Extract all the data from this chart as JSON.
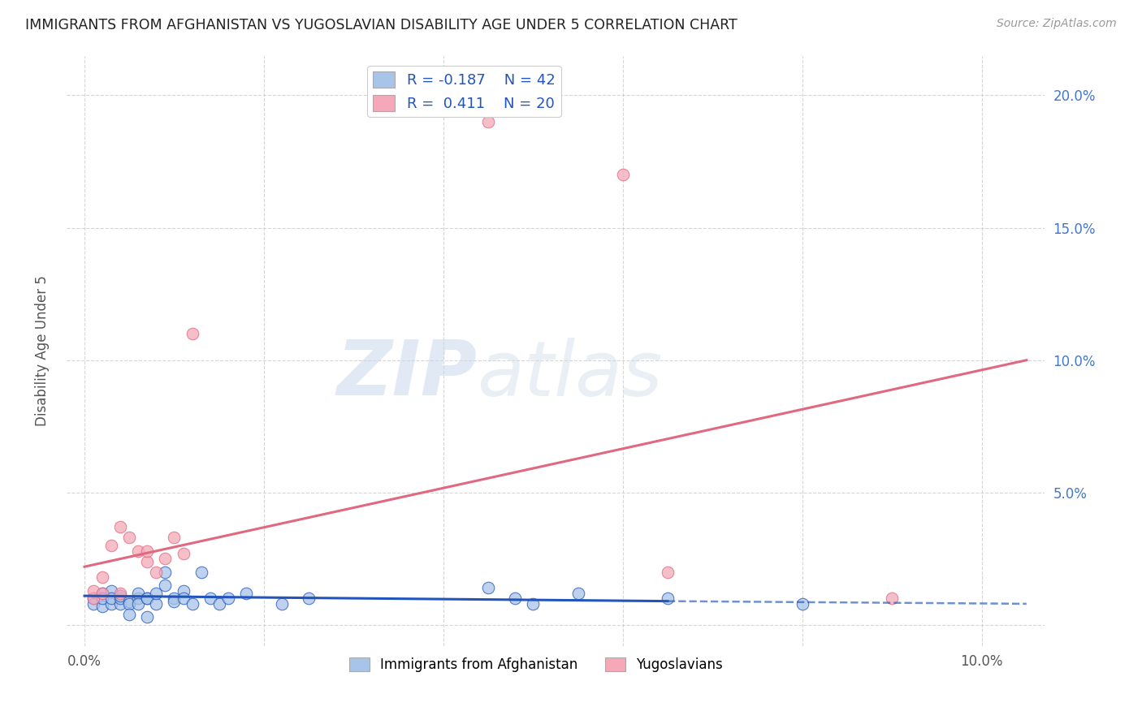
{
  "title": "IMMIGRANTS FROM AFGHANISTAN VS YUGOSLAVIAN DISABILITY AGE UNDER 5 CORRELATION CHART",
  "source": "Source: ZipAtlas.com",
  "ylabel": "Disability Age Under 5",
  "x_ticks": [
    0.0,
    0.02,
    0.04,
    0.06,
    0.08,
    0.1
  ],
  "x_tick_labels": [
    "0.0%",
    "",
    "",
    "",
    "",
    "10.0%"
  ],
  "y_ticks": [
    0.0,
    0.05,
    0.1,
    0.15,
    0.2
  ],
  "y_tick_labels": [
    "",
    "5.0%",
    "10.0%",
    "15.0%",
    "20.0%"
  ],
  "xlim": [
    -0.002,
    0.107
  ],
  "ylim": [
    -0.008,
    0.215
  ],
  "afghanistan_color": "#a8c4e8",
  "yugoslavian_color": "#f4a8b8",
  "afghanistan_line_color": "#2255bb",
  "yugoslavian_line_color": "#e06880",
  "legend_R_afghanistan": "-0.187",
  "legend_N_afghanistan": "42",
  "legend_R_yugoslavian": "0.411",
  "legend_N_yugoslavian": "20",
  "watermark_zip": "ZIP",
  "watermark_atlas": "atlas",
  "afghanistan_points": [
    [
      0.001,
      0.01
    ],
    [
      0.001,
      0.008
    ],
    [
      0.002,
      0.012
    ],
    [
      0.002,
      0.007
    ],
    [
      0.002,
      0.01
    ],
    [
      0.003,
      0.008
    ],
    [
      0.003,
      0.013
    ],
    [
      0.003,
      0.01
    ],
    [
      0.004,
      0.008
    ],
    [
      0.004,
      0.01
    ],
    [
      0.004,
      0.011
    ],
    [
      0.005,
      0.009
    ],
    [
      0.005,
      0.008
    ],
    [
      0.005,
      0.004
    ],
    [
      0.006,
      0.01
    ],
    [
      0.006,
      0.012
    ],
    [
      0.006,
      0.008
    ],
    [
      0.007,
      0.01
    ],
    [
      0.007,
      0.003
    ],
    [
      0.007,
      0.01
    ],
    [
      0.008,
      0.008
    ],
    [
      0.008,
      0.012
    ],
    [
      0.009,
      0.015
    ],
    [
      0.009,
      0.02
    ],
    [
      0.01,
      0.01
    ],
    [
      0.01,
      0.009
    ],
    [
      0.011,
      0.013
    ],
    [
      0.011,
      0.01
    ],
    [
      0.012,
      0.008
    ],
    [
      0.013,
      0.02
    ],
    [
      0.014,
      0.01
    ],
    [
      0.015,
      0.008
    ],
    [
      0.016,
      0.01
    ],
    [
      0.018,
      0.012
    ],
    [
      0.022,
      0.008
    ],
    [
      0.025,
      0.01
    ],
    [
      0.045,
      0.014
    ],
    [
      0.048,
      0.01
    ],
    [
      0.05,
      0.008
    ],
    [
      0.055,
      0.012
    ],
    [
      0.065,
      0.01
    ],
    [
      0.08,
      0.008
    ]
  ],
  "yugoslavian_points": [
    [
      0.001,
      0.01
    ],
    [
      0.001,
      0.013
    ],
    [
      0.002,
      0.018
    ],
    [
      0.002,
      0.012
    ],
    [
      0.003,
      0.03
    ],
    [
      0.004,
      0.012
    ],
    [
      0.004,
      0.037
    ],
    [
      0.005,
      0.033
    ],
    [
      0.006,
      0.028
    ],
    [
      0.007,
      0.024
    ],
    [
      0.007,
      0.028
    ],
    [
      0.008,
      0.02
    ],
    [
      0.009,
      0.025
    ],
    [
      0.01,
      0.033
    ],
    [
      0.011,
      0.027
    ],
    [
      0.012,
      0.11
    ],
    [
      0.045,
      0.19
    ],
    [
      0.06,
      0.17
    ],
    [
      0.065,
      0.02
    ],
    [
      0.09,
      0.01
    ]
  ],
  "afg_line_x_solid_end": 0.065,
  "afg_line_x_dashed_end": 0.105,
  "yug_line_x_start": 0.0,
  "yug_line_x_end": 0.105,
  "afg_line_y_start": 0.011,
  "afg_line_y_at_solid_end": 0.009,
  "afg_line_y_at_dashed_end": 0.008,
  "yug_line_y_start": 0.022,
  "yug_line_y_end": 0.1
}
